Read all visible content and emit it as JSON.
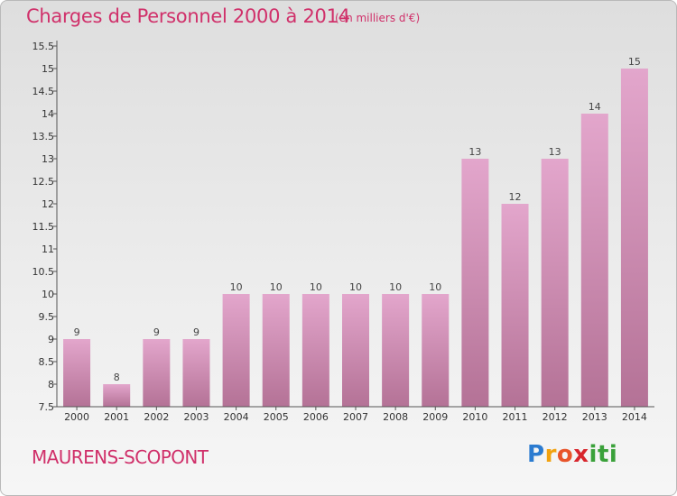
{
  "chart_data": {
    "type": "bar",
    "title": "Charges de Personnel 2000 à 2014",
    "subtitle": "(en milliers d'€)",
    "categories": [
      "2000",
      "2001",
      "2002",
      "2003",
      "2004",
      "2005",
      "2006",
      "2007",
      "2008",
      "2009",
      "2010",
      "2011",
      "2012",
      "2013",
      "2014"
    ],
    "values": [
      9,
      8,
      9,
      9,
      10,
      10,
      10,
      10,
      10,
      10,
      13,
      12,
      13,
      14,
      15
    ],
    "ylim": [
      7.5,
      15.5
    ],
    "yticks": [
      "7.5",
      "8",
      "8.5",
      "9",
      "9.5",
      "10",
      "10.5",
      "11",
      "11.5",
      "12",
      "12.5",
      "13",
      "13.5",
      "14",
      "14.5",
      "15",
      "15.5"
    ],
    "xlabel": "",
    "ylabel": "",
    "grid": false,
    "legend": "none"
  },
  "footer": {
    "commune": "MAURENS-SCOPONT",
    "brand_letters": [
      "P",
      "r",
      "o",
      "x",
      "i",
      "t",
      "i"
    ]
  },
  "colors": {
    "accent": "#d0306a",
    "bar_top": "#e3a6cc",
    "bar_bottom": "#b47296",
    "brand": [
      "#2b7bd0",
      "#f2a20f",
      "#e8542a",
      "#d8262d",
      "#3aa13a",
      "#3aa13a",
      "#3aa13a"
    ]
  }
}
